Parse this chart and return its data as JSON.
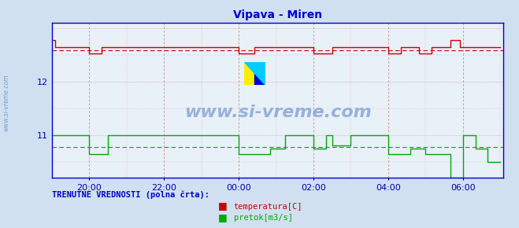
{
  "title": "Vipava - Miren",
  "title_color": "#0000cc",
  "bg_color": "#d0e0f0",
  "plot_bg_color": "#e8f0f8",
  "border_color": "#0000cc",
  "watermark_text": "www.si-vreme.com",
  "watermark_color": "#3366bb",
  "watermark_alpha": 0.45,
  "ylabel_color": "#0000aa",
  "xlabel_color": "#0000aa",
  "yticks": [
    11,
    12
  ],
  "xtick_labels": [
    "20:00",
    "22:00",
    "00:00",
    "02:00",
    "04:00",
    "06:00"
  ],
  "ylim": [
    10.2,
    13.1
  ],
  "xlim": [
    0,
    145
  ],
  "temp_color": "#cc0000",
  "flow_color": "#00aa00",
  "avg_temp_value": 12.58,
  "avg_flow_value": 10.78,
  "legend_label_temp": "temperatura[C]",
  "legend_label_flow": "pretok[m3/s]",
  "footer_text": "TRENUTNE VREDNOSTI (polna črta):",
  "footer_color": "#0000cc",
  "sidebar_text": "www.si-vreme.com",
  "sidebar_color": "#3366bb"
}
